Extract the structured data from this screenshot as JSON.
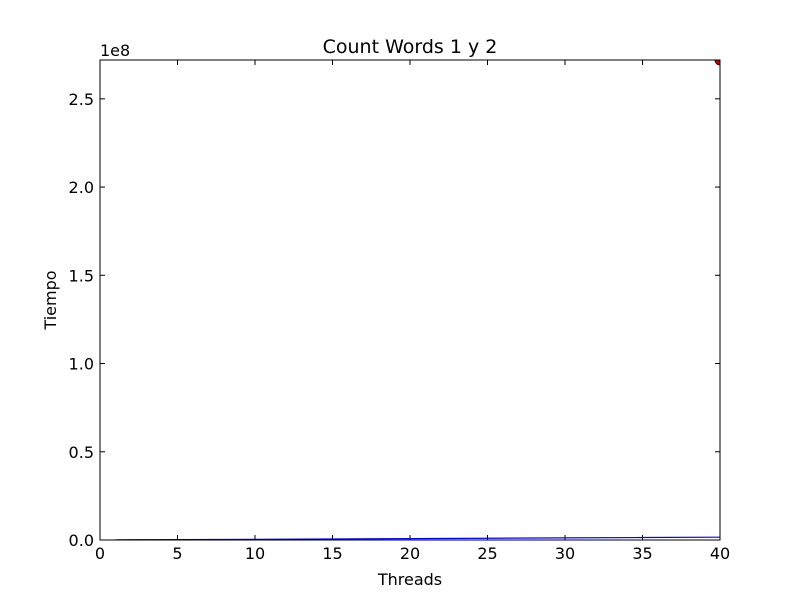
{
  "chart_data": {
    "type": "line",
    "title": "Count Words 1 y 2",
    "xlabel": "Threads",
    "ylabel": "Tiempo",
    "offset_label": "1e8",
    "xlim": [
      0,
      40
    ],
    "ylim": [
      0,
      272000000
    ],
    "x_ticks": [
      0,
      5,
      10,
      15,
      20,
      25,
      30,
      35,
      40
    ],
    "x_tick_labels": [
      "0",
      "5",
      "10",
      "15",
      "20",
      "25",
      "30",
      "35",
      "40"
    ],
    "y_ticks": [
      0,
      50000000,
      100000000,
      150000000,
      200000000,
      250000000
    ],
    "y_tick_labels": [
      "0.0",
      "0.5",
      "1.0",
      "1.5",
      "2.0",
      "2.5"
    ],
    "grid": false,
    "series": [
      {
        "color": "#0000ff",
        "x": [
          1,
          5,
          10,
          15,
          20,
          25,
          30,
          35,
          40
        ],
        "y": [
          100000,
          250000,
          400000,
          600000,
          800000,
          1000000,
          1200000,
          1400000,
          1600000
        ]
      },
      {
        "color": "#cc0000",
        "marker": "circle",
        "x": [
          40
        ],
        "y": [
          272000000
        ]
      }
    ]
  }
}
